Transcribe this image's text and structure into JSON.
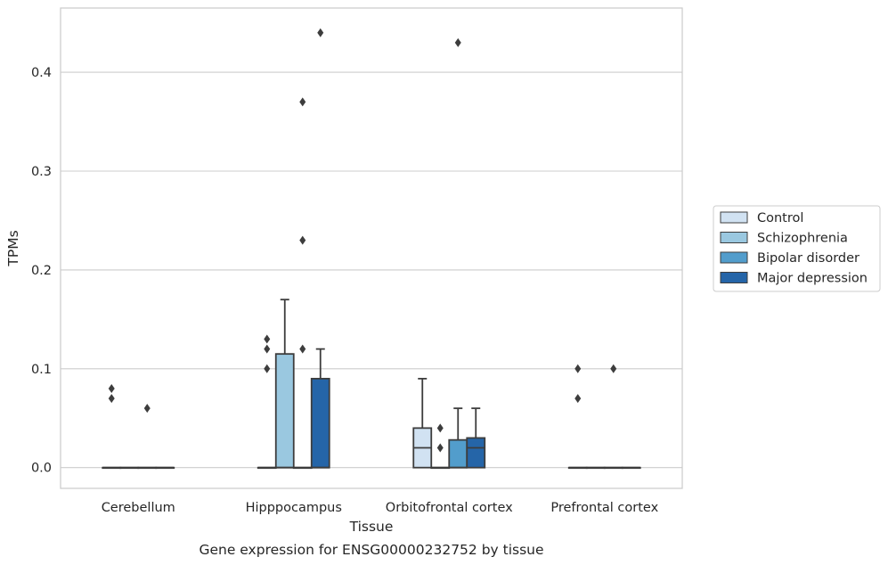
{
  "caption": "Gene expression for ENSG00000232752 by tissue",
  "chart_data": {
    "type": "box",
    "xlabel": "Tissue",
    "ylabel": "TPMs",
    "ylim": [
      -0.021,
      0.465
    ],
    "yticks": [
      "0.0",
      "0.1",
      "0.2",
      "0.3",
      "0.4"
    ],
    "ytick_values": [
      0.0,
      0.1,
      0.2,
      0.3,
      0.4
    ],
    "grid": "horizontal",
    "legend_position": "right",
    "categories": [
      "Cerebellum",
      "Hipppocampus",
      "Orbitofrontal cortex",
      "Prefrontal cortex"
    ],
    "series": [
      {
        "name": "Control",
        "color": "#d1e2f2",
        "boxes": [
          {
            "q1": 0,
            "median": 0,
            "q3": 0,
            "whislo": 0,
            "whishi": 0,
            "fliers": [
              0.07,
              0.08
            ]
          },
          {
            "q1": 0,
            "median": 0,
            "q3": 0,
            "whislo": 0,
            "whishi": 0,
            "fliers": [
              0.1,
              0.12,
              0.13
            ]
          },
          {
            "q1": 0,
            "median": 0.02,
            "q3": 0.04,
            "whislo": 0,
            "whishi": 0.09,
            "fliers": []
          },
          {
            "q1": 0,
            "median": 0,
            "q3": 0,
            "whislo": 0,
            "whishi": 0,
            "fliers": [
              0.07,
              0.1
            ]
          }
        ]
      },
      {
        "name": "Schizophrenia",
        "color": "#9ac8e0",
        "boxes": [
          {
            "q1": 0,
            "median": 0,
            "q3": 0,
            "whislo": 0,
            "whishi": 0,
            "fliers": []
          },
          {
            "q1": 0,
            "median": 0,
            "q3": 0.115,
            "whislo": 0,
            "whishi": 0.17,
            "fliers": []
          },
          {
            "q1": 0,
            "median": 0,
            "q3": 0,
            "whislo": 0,
            "whishi": 0,
            "fliers": [
              0.02,
              0.04
            ]
          },
          {
            "q1": 0,
            "median": 0,
            "q3": 0,
            "whislo": 0,
            "whishi": 0,
            "fliers": []
          }
        ]
      },
      {
        "name": "Bipolar disorder",
        "color": "#529dcc",
        "boxes": [
          {
            "q1": 0,
            "median": 0,
            "q3": 0,
            "whislo": 0,
            "whishi": 0,
            "fliers": [
              0.06
            ]
          },
          {
            "q1": 0,
            "median": 0,
            "q3": 0,
            "whislo": 0,
            "whishi": 0,
            "fliers": [
              0.12,
              0.23,
              0.37
            ]
          },
          {
            "q1": 0,
            "median": 0,
            "q3": 0.028,
            "whislo": 0,
            "whishi": 0.06,
            "fliers": [
              0.43
            ]
          },
          {
            "q1": 0,
            "median": 0,
            "q3": 0,
            "whislo": 0,
            "whishi": 0,
            "fliers": [
              0.1
            ]
          }
        ]
      },
      {
        "name": "Major depression",
        "color": "#2565a8",
        "boxes": [
          {
            "q1": 0,
            "median": 0,
            "q3": 0,
            "whislo": 0,
            "whishi": 0,
            "fliers": []
          },
          {
            "q1": 0,
            "median": 0,
            "q3": 0.09,
            "whislo": 0,
            "whishi": 0.12,
            "fliers": [
              0.44
            ]
          },
          {
            "q1": 0,
            "median": 0.02,
            "q3": 0.03,
            "whislo": 0,
            "whishi": 0.06,
            "fliers": []
          },
          {
            "q1": 0,
            "median": 0,
            "q3": 0,
            "whislo": 0,
            "whishi": 0,
            "fliers": []
          }
        ]
      }
    ]
  }
}
